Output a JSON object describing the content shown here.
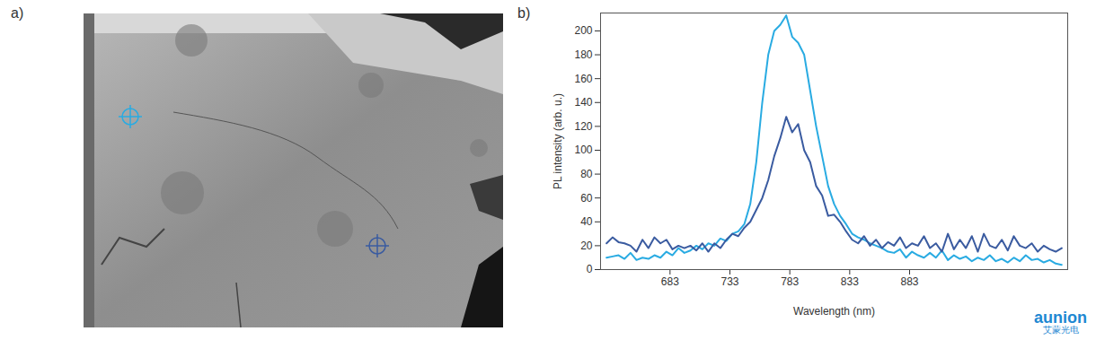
{
  "panels": [
    "a)",
    "b)"
  ],
  "watermark": [
    "aunion",
    "艾蒙光电"
  ],
  "chart_data": {
    "type": "line",
    "x_label": "Wavelength (nm)",
    "y_label": "PL intensity (arb. u.)",
    "xlim": [
      625,
      1015
    ],
    "xticks": [
      683,
      733,
      783,
      833,
      883
    ],
    "ylim": [
      0,
      215
    ],
    "yticks": [
      0,
      20,
      40,
      60,
      80,
      100,
      120,
      140,
      160,
      180,
      200
    ],
    "grid": false,
    "x": [
      630,
      635,
      640,
      645,
      650,
      655,
      660,
      665,
      670,
      675,
      680,
      685,
      690,
      695,
      700,
      705,
      710,
      715,
      720,
      725,
      730,
      735,
      740,
      745,
      750,
      755,
      760,
      765,
      770,
      775,
      780,
      785,
      790,
      795,
      800,
      805,
      810,
      815,
      820,
      825,
      830,
      835,
      840,
      845,
      850,
      855,
      860,
      865,
      870,
      875,
      880,
      885,
      890,
      895,
      900,
      905,
      910,
      915,
      920,
      925,
      930,
      935,
      940,
      945,
      950,
      955,
      960,
      965,
      970,
      975,
      980,
      985,
      990,
      995,
      1000,
      1005,
      1010
    ],
    "series": [
      {
        "color": "#29abe2",
        "values": [
          10,
          11,
          12,
          9,
          14,
          8,
          10,
          9,
          12,
          10,
          15,
          12,
          18,
          14,
          16,
          20,
          17,
          22,
          20,
          26,
          24,
          30,
          32,
          38,
          55,
          90,
          140,
          180,
          200,
          205,
          213,
          195,
          190,
          180,
          150,
          120,
          95,
          70,
          55,
          45,
          38,
          30,
          27,
          25,
          22,
          20,
          18,
          15,
          14,
          17,
          10,
          15,
          12,
          10,
          14,
          10,
          16,
          8,
          12,
          9,
          11,
          7,
          10,
          8,
          12,
          7,
          9,
          6,
          10,
          7,
          12,
          8,
          9,
          6,
          8,
          5,
          4
        ]
      },
      {
        "color": "#3a5ba0",
        "values": [
          22,
          27,
          23,
          22,
          20,
          15,
          25,
          18,
          27,
          22,
          25,
          17,
          20,
          18,
          20,
          16,
          22,
          15,
          22,
          18,
          25,
          30,
          28,
          35,
          40,
          50,
          60,
          75,
          95,
          110,
          128,
          115,
          122,
          100,
          90,
          70,
          62,
          45,
          46,
          40,
          32,
          25,
          22,
          28,
          20,
          25,
          18,
          23,
          20,
          27,
          18,
          22,
          20,
          28,
          18,
          22,
          15,
          30,
          17,
          25,
          18,
          28,
          15,
          30,
          20,
          18,
          25,
          16,
          28,
          20,
          18,
          22,
          15,
          20,
          17,
          15,
          18
        ]
      }
    ]
  }
}
